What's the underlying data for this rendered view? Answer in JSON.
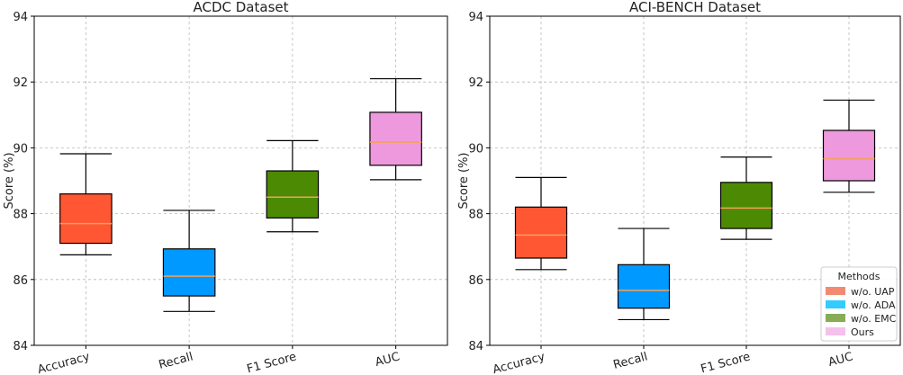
{
  "chart_data": [
    {
      "type": "box",
      "title": "ACDC Dataset",
      "xlabel": "",
      "ylabel": "Score (%)",
      "ylim": [
        84,
        94
      ],
      "yticks": [
        84,
        86,
        88,
        90,
        92,
        94
      ],
      "grid": true,
      "categories": [
        "Accuracy",
        "Recall",
        "F1 Score",
        "AUC"
      ],
      "boxes": [
        {
          "category": "Accuracy",
          "min": 86.75,
          "q1": 87.1,
          "median": 87.7,
          "q3": 88.6,
          "max": 89.82,
          "color": "#FF5733"
        },
        {
          "category": "Recall",
          "min": 85.03,
          "q1": 85.5,
          "median": 86.1,
          "q3": 86.93,
          "max": 88.1,
          "color": "#0099FF"
        },
        {
          "category": "F1 Score",
          "min": 87.45,
          "q1": 87.87,
          "median": 88.5,
          "q3": 89.3,
          "max": 90.22,
          "color": "#4C8A04"
        },
        {
          "category": "AUC",
          "min": 89.03,
          "q1": 89.47,
          "median": 90.17,
          "q3": 91.08,
          "max": 92.1,
          "color": "#EE99DD"
        }
      ]
    },
    {
      "type": "box",
      "title": "ACI-BENCH Dataset",
      "xlabel": "",
      "ylabel": "Score (%)",
      "ylim": [
        84,
        94
      ],
      "yticks": [
        84,
        86,
        88,
        90,
        92,
        94
      ],
      "grid": true,
      "categories": [
        "Accuracy",
        "Recall",
        "F1 Score",
        "AUC"
      ],
      "boxes": [
        {
          "category": "Accuracy",
          "min": 86.3,
          "q1": 86.65,
          "median": 87.35,
          "q3": 88.2,
          "max": 89.1,
          "color": "#FF5733"
        },
        {
          "category": "Recall",
          "min": 84.78,
          "q1": 85.13,
          "median": 85.67,
          "q3": 86.45,
          "max": 87.55,
          "color": "#0099FF"
        },
        {
          "category": "F1 Score",
          "min": 87.22,
          "q1": 87.55,
          "median": 88.17,
          "q3": 88.95,
          "max": 89.72,
          "color": "#4C8A04"
        },
        {
          "category": "AUC",
          "min": 88.65,
          "q1": 89.0,
          "median": 89.67,
          "q3": 90.53,
          "max": 91.45,
          "color": "#EE99DD"
        }
      ],
      "legend": {
        "title": "Methods",
        "placement": "lower-right",
        "entries": [
          {
            "label": "w/o. UAP",
            "color": "#F28A72"
          },
          {
            "label": "w/o. ADA",
            "color": "#33CCFF"
          },
          {
            "label": "w/o. EMC",
            "color": "#86AD55"
          },
          {
            "label": "Ours",
            "color": "#F5C0EB"
          }
        ]
      }
    }
  ]
}
